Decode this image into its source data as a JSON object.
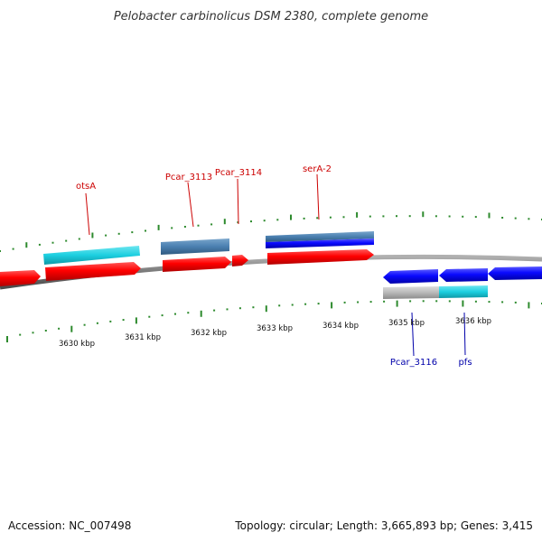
{
  "title": "Pelobacter carbinolicus DSM 2380, complete genome",
  "footer": {
    "accession": "Accession: NC_007498",
    "topology": "Topology: circular; Length: 3,665,893 bp; Genes: 3,415"
  },
  "colors": {
    "tick": "#2d8a2d",
    "backbone": "#808080",
    "label_top": "#cc0000",
    "label_bottom": "#0000aa",
    "gene_red": "#ff0000",
    "gene_blue": "#0a0aff",
    "gene_cyan": "#1ccfe0",
    "gene_steel": "#4a7fb0",
    "gene_gray": "#b8b8b8"
  },
  "axis": {
    "unit": "kbp",
    "ticks": [
      {
        "label": "3630 kbp"
      },
      {
        "label": "3631 kbp"
      },
      {
        "label": "3632 kbp"
      },
      {
        "label": "3633 kbp"
      },
      {
        "label": "3634 kbp"
      },
      {
        "label": "3635 kbp"
      },
      {
        "label": "3636 kbp"
      }
    ]
  },
  "gene_labels_top": [
    {
      "name": "otsA"
    },
    {
      "name": "Pcar_3113"
    },
    {
      "name": "Pcar_3114"
    },
    {
      "name": "serA-2"
    }
  ],
  "gene_labels_bottom": [
    {
      "name": "Pcar_3116"
    },
    {
      "name": "pfs"
    }
  ]
}
